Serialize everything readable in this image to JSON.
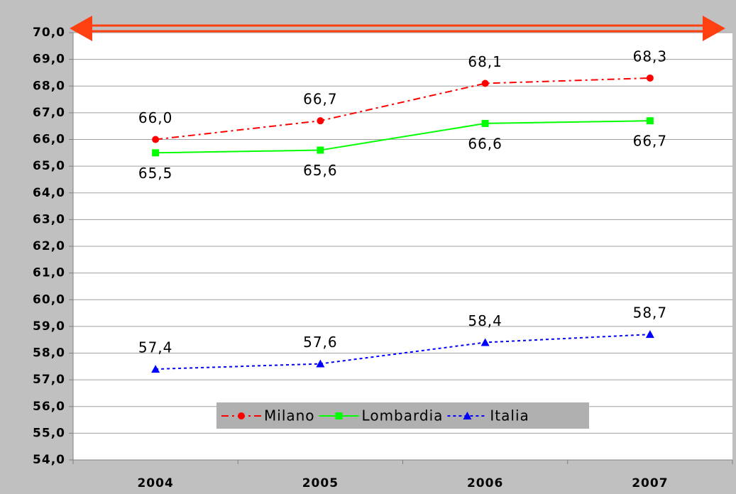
{
  "chart_data": {
    "type": "line",
    "categories": [
      "2004",
      "2005",
      "2006",
      "2007"
    ],
    "series": [
      {
        "name": "Milano",
        "color": "#ff0000",
        "marker": "circle",
        "dash": "10 5 3 5",
        "values": [
          66.0,
          66.7,
          68.1,
          68.3
        ],
        "value_labels": [
          "66,0",
          "66,7",
          "68,1",
          "68,3"
        ]
      },
      {
        "name": "Lombardia",
        "color": "#00ff00",
        "marker": "square",
        "dash": "none",
        "values": [
          65.5,
          65.6,
          66.6,
          66.7
        ],
        "value_labels": [
          "65,5",
          "65,6",
          "66,6",
          "66,7"
        ]
      },
      {
        "name": "Italia",
        "color": "#0000ff",
        "marker": "triangle",
        "dash": "4 4",
        "values": [
          57.4,
          57.6,
          58.4,
          58.7
        ],
        "value_labels": [
          "57,4",
          "57,6",
          "58,4",
          "58,7"
        ]
      }
    ],
    "ylim": [
      54,
      70
    ],
    "yticks": [
      {
        "value": 54,
        "label": "54,0"
      },
      {
        "value": 55,
        "label": "55,0"
      },
      {
        "value": 56,
        "label": "56,0"
      },
      {
        "value": 57,
        "label": "57,0"
      },
      {
        "value": 58,
        "label": "58,0"
      },
      {
        "value": 59,
        "label": "59,0"
      },
      {
        "value": 60,
        "label": "60,0"
      },
      {
        "value": 61,
        "label": "61,0"
      },
      {
        "value": 62,
        "label": "62,0"
      },
      {
        "value": 63,
        "label": "63,0"
      },
      {
        "value": 64,
        "label": "64,0"
      },
      {
        "value": 65,
        "label": "65,0"
      },
      {
        "value": 66,
        "label": "66,0"
      },
      {
        "value": 67,
        "label": "67,0"
      },
      {
        "value": 68,
        "label": "68,0"
      },
      {
        "value": 69,
        "label": "69,0"
      },
      {
        "value": 70,
        "label": "70,0"
      }
    ],
    "grid": true,
    "legend": "bottom"
  }
}
